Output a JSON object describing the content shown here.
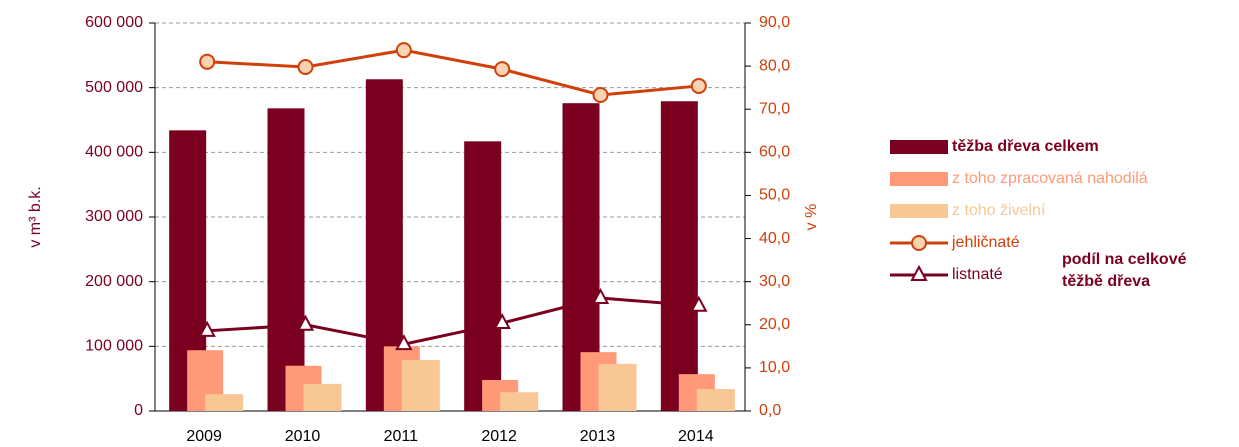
{
  "chart_data": {
    "type": "bar",
    "categories": [
      "2009",
      "2010",
      "2011",
      "2012",
      "2013",
      "2014"
    ],
    "ylabel": "v m³ b.k.",
    "y2label": "v %",
    "ylim": [
      0,
      600000
    ],
    "yticks": [
      0,
      {
        "value": 100000,
        "label": "100 000"
      },
      {
        "value": 200000,
        "label": "200 000"
      },
      {
        "value": 300000,
        "label": "300 000"
      },
      {
        "value": 400000,
        "label": "400 000"
      },
      {
        "value": 500000,
        "label": "500 000"
      },
      {
        "value": 600000,
        "label": "600 000"
      }
    ],
    "y2lim": [
      0,
      90
    ],
    "y2ticks": [
      {
        "value": 0,
        "label": "0,0"
      },
      {
        "value": 10,
        "label": "10,0"
      },
      {
        "value": 20,
        "label": "20,0"
      },
      {
        "value": 30,
        "label": "30,0"
      },
      {
        "value": 40,
        "label": "40,0"
      },
      {
        "value": 50,
        "label": "50,0"
      },
      {
        "value": 60,
        "label": "60,0"
      },
      {
        "value": 70,
        "label": "70,0"
      },
      {
        "value": 80,
        "label": "80,0"
      },
      {
        "value": 90,
        "label": "90,0"
      }
    ],
    "grid": true,
    "legend": "right",
    "annotation": [
      "podíl na celkové",
      "těžbě dřeva"
    ],
    "series": [
      {
        "name": "těžba dřeva celkem",
        "type": "bar",
        "color": "#7b0020",
        "values": [
          434000,
          468000,
          513000,
          417000,
          476000,
          479000
        ]
      },
      {
        "name": "z toho zpracovaná nahodilá",
        "type": "bar",
        "color": "#ff9978",
        "values": [
          94000,
          70000,
          100000,
          48000,
          91000,
          57000
        ]
      },
      {
        "name": "z toho živelní",
        "type": "bar",
        "color": "#f7c896",
        "values": [
          26000,
          42000,
          79000,
          29000,
          73000,
          34000
        ]
      },
      {
        "name": "jehličnaté",
        "type": "line",
        "axis": "y2",
        "color": "#d0400a",
        "marker": "circle",
        "values": [
          81.0,
          79.8,
          83.7,
          79.3,
          73.3,
          75.4
        ]
      },
      {
        "name": "listnaté",
        "type": "line",
        "axis": "y2",
        "color": "#7b0020",
        "marker": "triangle",
        "values": [
          18.6,
          20.0,
          15.5,
          20.4,
          26.2,
          24.4
        ]
      }
    ]
  }
}
